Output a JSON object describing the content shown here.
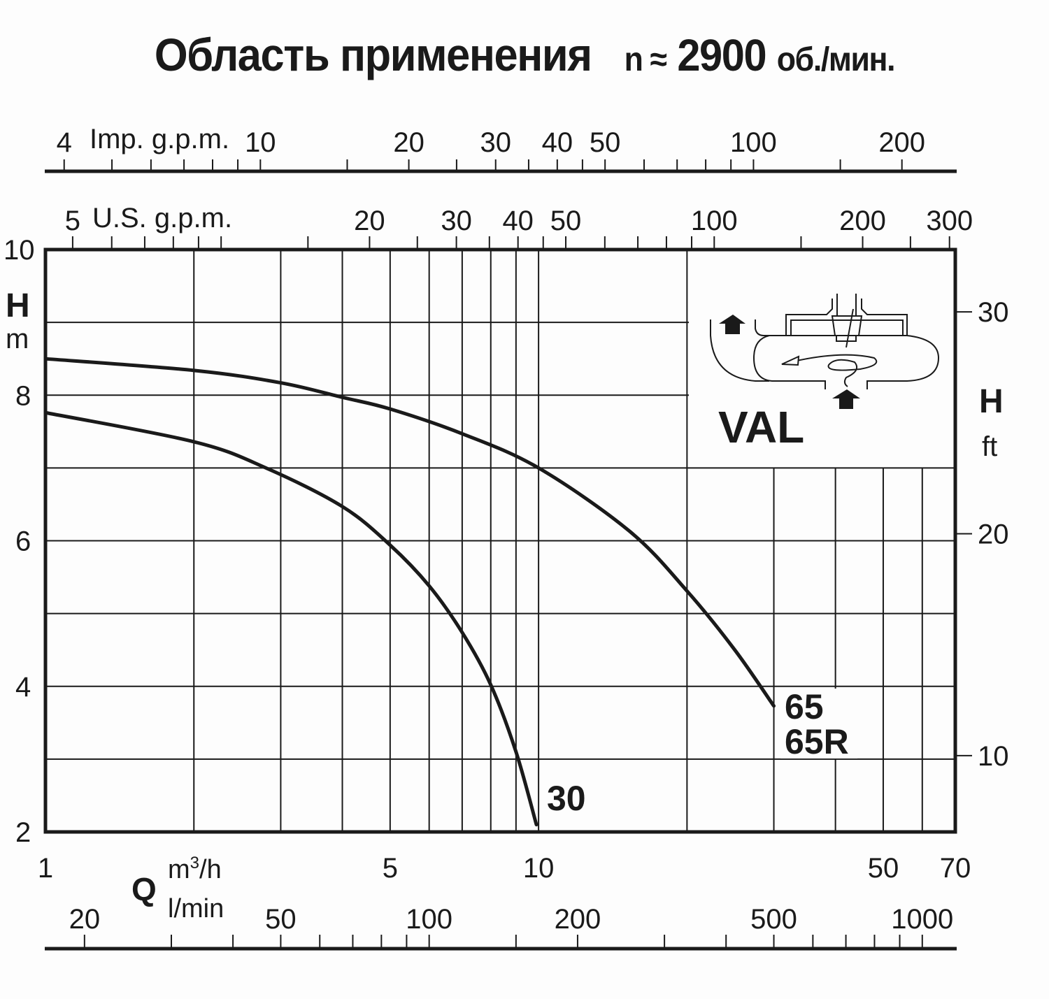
{
  "title": {
    "main": "Область применения",
    "n_symbol": "n ≈",
    "speed": "2900",
    "unit": "об./мин."
  },
  "chart_data": {
    "type": "line",
    "title": "Область применения n ≈ 2900 об./мин.",
    "x_scale": "log",
    "xlim": [
      1,
      70
    ],
    "ylim": [
      2,
      10
    ],
    "grid": true,
    "xlabel": "Q",
    "xlabel_units": [
      "m³/h",
      "l/min"
    ],
    "ylabel": "H",
    "ylabel_units": "m",
    "ylabel_right": "H",
    "ylabel_right_units": "ft",
    "x_ticks_m3h": [
      "1",
      "5",
      "10",
      "50",
      "70"
    ],
    "x_ticks_lmin": [
      "20",
      "50",
      "100",
      "200",
      "500",
      "1000"
    ],
    "top_axis_imp_gpm": {
      "label": "Imp. g.p.m.",
      "ticks": [
        "4",
        "10",
        "20",
        "30",
        "40",
        "50",
        "100",
        "200"
      ]
    },
    "top_axis_us_gpm": {
      "label": "U.S. g.p.m.",
      "ticks": [
        "5",
        "20",
        "30",
        "40",
        "50",
        "100",
        "200",
        "300"
      ]
    },
    "y_ticks_m": [
      "10",
      "8",
      "6",
      "4",
      "2"
    ],
    "y_ticks_ft": [
      "30",
      "20",
      "10"
    ],
    "series": [
      {
        "name": "65 / 65R",
        "labels": [
          "65",
          "65R"
        ],
        "x": [
          1,
          2,
          3,
          4,
          5,
          7,
          10,
          15.3,
          20,
          25,
          30
        ],
        "y": [
          8.5,
          8.34,
          8.17,
          7.97,
          7.81,
          7.47,
          7.0,
          6.13,
          5.31,
          4.5,
          3.73
        ]
      },
      {
        "name": "30",
        "labels": [
          "30"
        ],
        "x": [
          1,
          2,
          2.8,
          4,
          5,
          6,
          7,
          8,
          9,
          9.9
        ],
        "y": [
          7.76,
          7.36,
          7.0,
          6.47,
          5.94,
          5.38,
          4.74,
          4.02,
          3.1,
          2.1
        ]
      }
    ],
    "annotations": [
      "VAL"
    ]
  },
  "axes": {
    "imp_label": "Imp. g.p.m.",
    "us_label": "U.S. g.p.m.",
    "h_left": "H",
    "h_left_unit": "m",
    "h_right": "H",
    "h_right_unit": "ft",
    "q_label": "Q",
    "q_unit_m3": "m",
    "q_unit_m3_sup": "3",
    "q_unit_m3_tail": "/h",
    "q_unit_lmin": "l/min"
  },
  "curve_labels": {
    "c65": "65",
    "c65r": "65R",
    "c30": "30"
  },
  "inset": {
    "label": "VAL"
  }
}
